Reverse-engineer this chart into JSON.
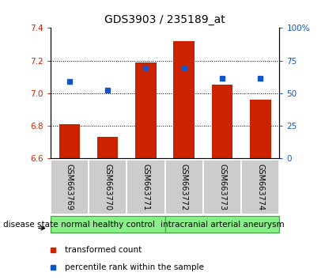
{
  "title": "GDS3903 / 235189_at",
  "samples": [
    "GSM663769",
    "GSM663770",
    "GSM663771",
    "GSM663772",
    "GSM663773",
    "GSM663774"
  ],
  "bar_values": [
    6.81,
    6.73,
    7.19,
    7.32,
    7.05,
    6.96
  ],
  "percentile_values": [
    7.07,
    7.02,
    7.155,
    7.155,
    7.09,
    7.09
  ],
  "ylim_left": [
    6.6,
    7.4
  ],
  "ylim_right": [
    0,
    100
  ],
  "yticks_left": [
    6.6,
    6.8,
    7.0,
    7.2,
    7.4
  ],
  "yticks_right": [
    0,
    25,
    50,
    75,
    100
  ],
  "grid_values": [
    6.8,
    7.0,
    7.2
  ],
  "bar_color": "#cc2200",
  "marker_color": "#1155cc",
  "bar_bottom": 6.6,
  "groups": [
    {
      "label": "normal healthy control",
      "start": 0,
      "end": 3
    },
    {
      "label": "intracranial arterial aneurysm",
      "start": 3,
      "end": 6
    }
  ],
  "group_color": "#88ee88",
  "group_border_color": "#33aa33",
  "sample_box_color": "#cccccc",
  "disease_state_label": "disease state",
  "legend_bar_label": "transformed count",
  "legend_marker_label": "percentile rank within the sample",
  "title_fontsize": 10,
  "tick_fontsize": 7.5,
  "group_label_fontsize": 7.5,
  "sample_fontsize": 7
}
